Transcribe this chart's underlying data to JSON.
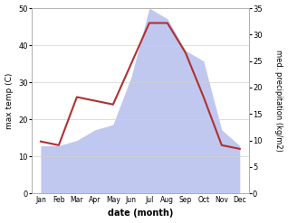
{
  "months": [
    "Jan",
    "Feb",
    "Mar",
    "Apr",
    "May",
    "Jun",
    "Jul",
    "Aug",
    "Sep",
    "Oct",
    "Nov",
    "Dec"
  ],
  "temperature": [
    14,
    13,
    26,
    25,
    24,
    35,
    46,
    46,
    38,
    26,
    13,
    12
  ],
  "precipitation": [
    9,
    9,
    10,
    12,
    13,
    22,
    35,
    33,
    27,
    25,
    12,
    9
  ],
  "temp_color": "#b03030",
  "precip_fill_color": "#c0c8f0",
  "ylabel_left": "max temp (C)",
  "ylabel_right": "med. precipitation (kg/m2)",
  "xlabel": "date (month)",
  "ylim_left": [
    0,
    50
  ],
  "ylim_right": [
    0,
    35
  ],
  "yticks_left": [
    0,
    10,
    20,
    30,
    40,
    50
  ],
  "yticks_right": [
    0,
    5,
    10,
    15,
    20,
    25,
    30,
    35
  ],
  "bg_color": "#ffffff",
  "grid_color": "#d0d0d0"
}
